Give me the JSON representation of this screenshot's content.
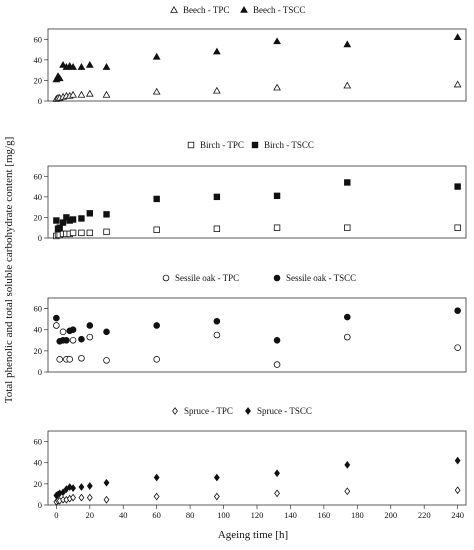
{
  "figure": {
    "ylabel": "Total phenolic and total soluble carbohydrate content [mg/g]",
    "xlabel": "Ageing time [h]"
  },
  "chart_data": [
    {
      "type": "scatter",
      "title": "",
      "xlabel": "",
      "ylabel": "",
      "xlim": [
        -5,
        245
      ],
      "ylim": [
        0,
        70
      ],
      "yticks": [
        0,
        20,
        40,
        60
      ],
      "xticks": [],
      "legend_position": "top-center",
      "series": [
        {
          "name": "Beech - TPC",
          "marker": "open-triangle",
          "x": [
            0,
            1,
            2,
            4,
            6,
            8,
            10,
            15,
            20,
            30,
            60,
            96,
            132,
            174,
            240
          ],
          "y": [
            2,
            3,
            3,
            4,
            5,
            5,
            6,
            6,
            7,
            6,
            9,
            10,
            13,
            15,
            16
          ]
        },
        {
          "name": "Beech - TSCC",
          "marker": "filled-triangle",
          "x": [
            0,
            1,
            2,
            4,
            6,
            8,
            10,
            15,
            20,
            30,
            60,
            96,
            132,
            174,
            240
          ],
          "y": [
            21,
            24,
            22,
            35,
            33,
            34,
            33,
            33,
            35,
            33,
            43,
            48,
            58,
            55,
            62
          ]
        }
      ]
    },
    {
      "type": "scatter",
      "title": "",
      "xlabel": "",
      "ylabel": "",
      "xlim": [
        -5,
        245
      ],
      "ylim": [
        0,
        70
      ],
      "yticks": [
        0,
        20,
        40,
        60
      ],
      "xticks": [],
      "legend_position": "top-center",
      "series": [
        {
          "name": "Birch - TPC",
          "marker": "open-square",
          "x": [
            0,
            1,
            2,
            4,
            6,
            8,
            10,
            15,
            20,
            30,
            60,
            96,
            132,
            174,
            240
          ],
          "y": [
            2,
            3,
            3,
            4,
            4,
            4,
            5,
            5,
            5,
            6,
            8,
            9,
            10,
            10,
            10
          ]
        },
        {
          "name": "Birch - TSCC",
          "marker": "filled-square",
          "x": [
            0,
            1,
            2,
            4,
            6,
            8,
            10,
            15,
            20,
            30,
            60,
            96,
            132,
            174,
            240
          ],
          "y": [
            17,
            9,
            10,
            15,
            20,
            17,
            18,
            19,
            24,
            23,
            38,
            40,
            41,
            54,
            50
          ]
        }
      ]
    },
    {
      "type": "scatter",
      "title": "",
      "xlabel": "",
      "ylabel": "",
      "xlim": [
        -5,
        245
      ],
      "ylim": [
        0,
        70
      ],
      "yticks": [
        0,
        20,
        40,
        60
      ],
      "xticks": [],
      "legend_position": "top-center",
      "series": [
        {
          "name": "Sessile oak - TPC",
          "marker": "open-circle",
          "x": [
            0,
            2,
            4,
            6,
            8,
            10,
            15,
            20,
            30,
            60,
            96,
            132,
            174,
            240
          ],
          "y": [
            44,
            12,
            38,
            12,
            12,
            30,
            13,
            33,
            11,
            12,
            35,
            7,
            33,
            23
          ]
        },
        {
          "name": "Sessile oak - TSCC",
          "marker": "filled-circle",
          "x": [
            0,
            2,
            4,
            6,
            8,
            10,
            15,
            20,
            30,
            60,
            96,
            132,
            174,
            240
          ],
          "y": [
            51,
            29,
            30,
            30,
            39,
            40,
            31,
            44,
            38,
            44,
            48,
            30,
            52,
            58
          ]
        }
      ]
    },
    {
      "type": "scatter",
      "title": "",
      "xlabel": "",
      "ylabel": "",
      "xlim": [
        -5,
        245
      ],
      "ylim": [
        0,
        70
      ],
      "yticks": [
        0,
        20,
        40,
        60
      ],
      "xticks": [
        0,
        20,
        40,
        60,
        80,
        100,
        120,
        140,
        160,
        180,
        200,
        220,
        240
      ],
      "legend_position": "top-center",
      "series": [
        {
          "name": "Spruce - TPC",
          "marker": "open-diamond",
          "x": [
            0,
            1,
            2,
            4,
            6,
            8,
            10,
            15,
            20,
            30,
            60,
            96,
            132,
            174,
            240
          ],
          "y": [
            3,
            4,
            4,
            5,
            5,
            6,
            7,
            7,
            7,
            5,
            8,
            8,
            11,
            13,
            14
          ]
        },
        {
          "name": "Spruce - TSCC",
          "marker": "filled-diamond",
          "x": [
            0,
            1,
            2,
            4,
            6,
            8,
            10,
            15,
            20,
            30,
            60,
            96,
            132,
            174,
            240
          ],
          "y": [
            9,
            10,
            11,
            12,
            15,
            17,
            16,
            17,
            18,
            21,
            26,
            26,
            30,
            38,
            42
          ]
        }
      ]
    }
  ]
}
